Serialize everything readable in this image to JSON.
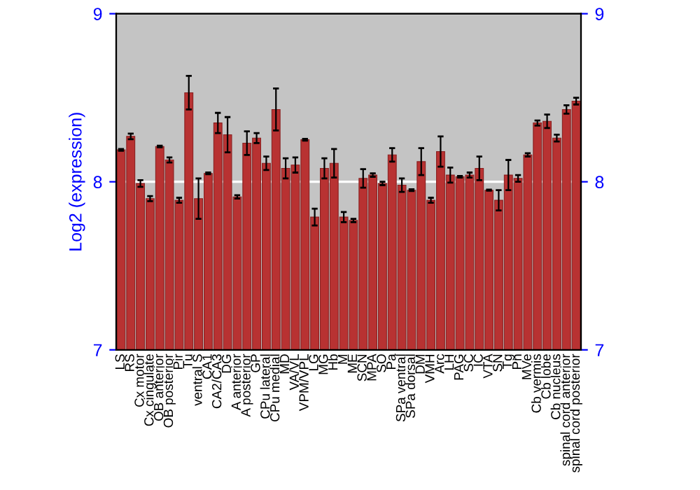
{
  "chart_data": {
    "type": "bar",
    "ylabel": "Log2 (expression)",
    "categories": [
      "LS",
      "RS",
      "Cx motor",
      "Cx cingulate",
      "OB anterior",
      "OB posterior",
      "Pir",
      "Tu",
      "ventral S",
      "CA1",
      "CA2/CA3",
      "DG",
      "A anterior",
      "A posterior",
      "GP",
      "CPu lateral",
      "CPu medial",
      "MD",
      "VA/VL",
      "VPM/VPL",
      "LG",
      "MG",
      "Hb",
      "M",
      "ME",
      "SCN",
      "MPA",
      "SO",
      "Pa",
      "SPa ventral",
      "SPa dorsal",
      "DM",
      "VMH",
      "Arc",
      "LH",
      "PAG",
      "SC",
      "IC",
      "VTA",
      "SN",
      "Tg",
      "Pn",
      "MVe",
      "Cb vermis",
      "Cb lobe",
      "Cb nucleus",
      "spinal cord anterior",
      "spinal cord posterior"
    ],
    "series": [
      {
        "color": "#b83232",
        "values": [
          8.19,
          8.27,
          7.99,
          7.9,
          8.21,
          8.13,
          7.89,
          8.53,
          7.9,
          8.05,
          8.35,
          8.28,
          7.91,
          8.23,
          8.26,
          8.11,
          8.43,
          8.08,
          8.1,
          8.25,
          7.79,
          8.08,
          8.11,
          7.79,
          7.77,
          8.02,
          8.04,
          7.99,
          8.16,
          7.98,
          7.95,
          8.12,
          7.89,
          8.18,
          8.04,
          8.03,
          8.04,
          8.08,
          7.95,
          7.89,
          8.04,
          8.02,
          8.16,
          8.35,
          8.36,
          8.26,
          8.43,
          8.48
        ],
        "errors": [
          0.005,
          0.017,
          0.02,
          0.015,
          0.005,
          0.015,
          0.015,
          0.1,
          0.12,
          0.005,
          0.06,
          0.105,
          0.01,
          0.07,
          0.03,
          0.04,
          0.125,
          0.06,
          0.045,
          0.005,
          0.05,
          0.06,
          0.085,
          0.03,
          0.01,
          0.055,
          0.01,
          0.01,
          0.04,
          0.04,
          0.005,
          0.08,
          0.015,
          0.09,
          0.045,
          0.005,
          0.015,
          0.07,
          0.003,
          0.06,
          0.09,
          0.02,
          0.01,
          0.015,
          0.04,
          0.02,
          0.025,
          0.02
        ]
      }
    ],
    "ylim": [
      7,
      9
    ],
    "yticks": [
      7,
      8,
      9
    ],
    "y2lim": [
      7,
      9
    ],
    "y2ticks": [
      7,
      8,
      9
    ],
    "grid": "y"
  }
}
